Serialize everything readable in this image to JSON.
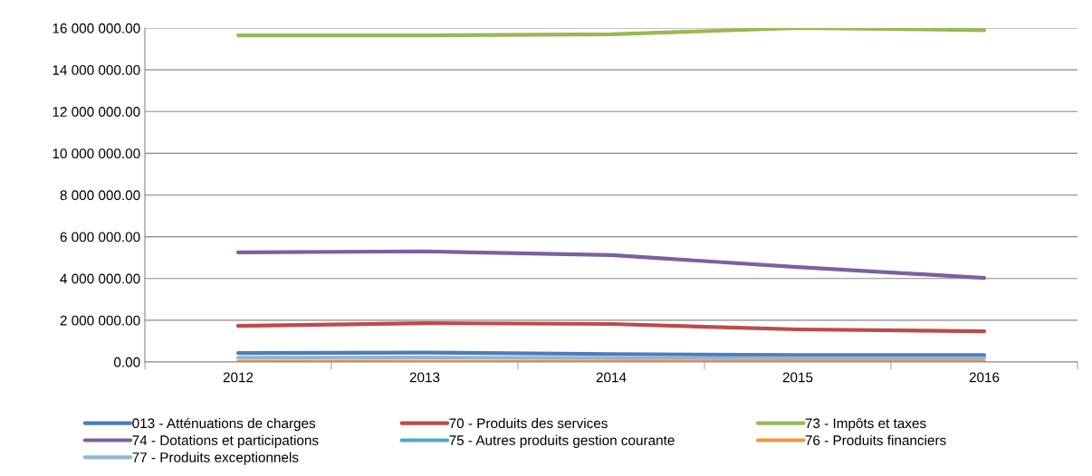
{
  "chart_data": {
    "type": "line",
    "categories": [
      "2012",
      "2013",
      "2014",
      "2015",
      "2016"
    ],
    "series": [
      {
        "name": "013 - Atténuations de charges",
        "color": "#4a7ebb",
        "values": [
          430000,
          450000,
          380000,
          330000,
          330000
        ]
      },
      {
        "name": "70 - Produits des services",
        "color": "#be4b48",
        "values": [
          1730000,
          1860000,
          1820000,
          1560000,
          1470000
        ]
      },
      {
        "name": "73 - Impôts et taxes",
        "color": "#98b954",
        "values": [
          15650000,
          15650000,
          15700000,
          16000000,
          15900000
        ]
      },
      {
        "name": "74 - Dotations et participations",
        "color": "#7d60a0",
        "values": [
          5250000,
          5300000,
          5120000,
          4550000,
          4030000
        ]
      },
      {
        "name": "75 - Autres produits gestion courante",
        "color": "#46aac5",
        "values": [
          null,
          null,
          null,
          null,
          null
        ]
      },
      {
        "name": "76 - Produits financiers",
        "color": "#f69240",
        "values": [
          10000,
          10000,
          10000,
          10000,
          10000
        ]
      },
      {
        "name": "77 - Produits exceptionnels",
        "color": "#95b3d7",
        "values": [
          200000,
          210000,
          190000,
          180000,
          180000
        ]
      }
    ],
    "ylim": [
      0,
      16000000
    ],
    "yticks": [
      {
        "value": 0,
        "label": "0.00"
      },
      {
        "value": 2000000,
        "label": "2 000 000.00"
      },
      {
        "value": 4000000,
        "label": "4 000 000.00"
      },
      {
        "value": 6000000,
        "label": "6 000 000.00"
      },
      {
        "value": 8000000,
        "label": "8 000 000.00"
      },
      {
        "value": 10000000,
        "label": "10 000 000.00"
      },
      {
        "value": 12000000,
        "label": "12 000 000.00"
      },
      {
        "value": 14000000,
        "label": "14 000 000.00"
      },
      {
        "value": 16000000,
        "label": "16 000 000.00"
      }
    ],
    "grid": "y",
    "legend": "bottom",
    "marker": "none",
    "line_style": "solid"
  }
}
